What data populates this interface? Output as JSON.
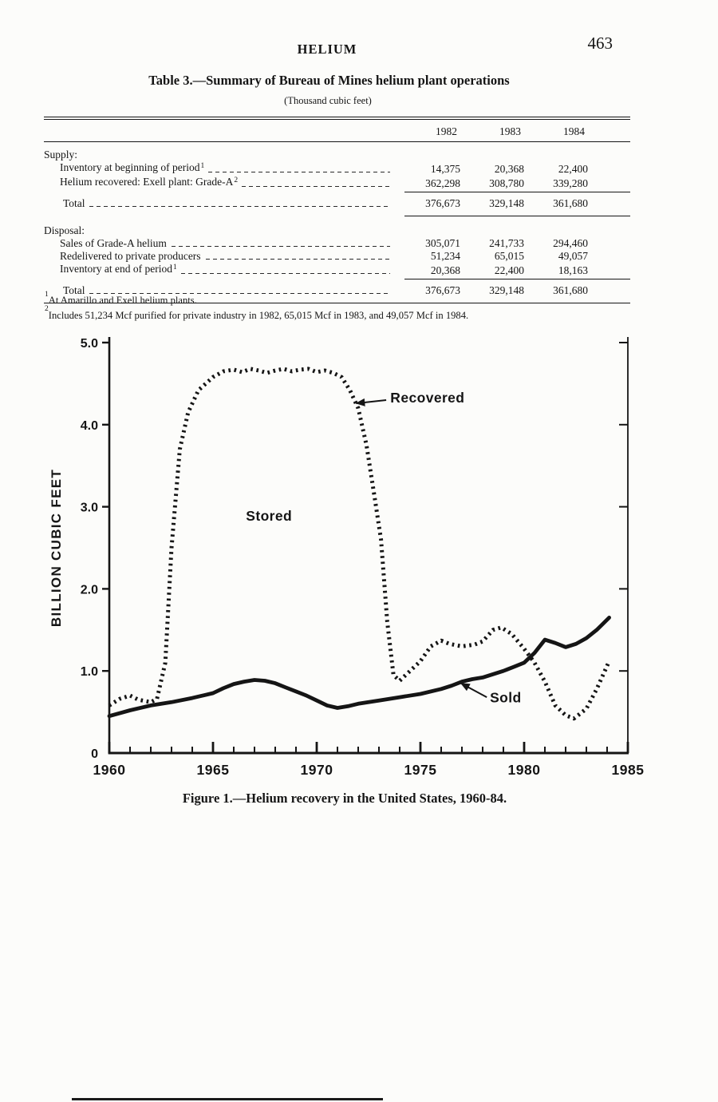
{
  "page": {
    "running_head": "HELIUM",
    "page_number": "463"
  },
  "table": {
    "title": "Table 3.—Summary of Bureau of Mines helium plant operations",
    "subtitle": "(Thousand cubic feet)",
    "years": [
      "1982",
      "1983",
      "1984"
    ],
    "sections": [
      {
        "heading": "Supply:",
        "rows": [
          {
            "label": "Inventory at beginning of period",
            "sup": "1",
            "values": [
              "14,375",
              "20,368",
              "22,400"
            ]
          },
          {
            "label": "Helium recovered: Exell plant: Grade-A",
            "sup": "2",
            "values": [
              "362,298",
              "308,780",
              "339,280"
            ]
          }
        ],
        "total": {
          "label": "Total",
          "values": [
            "376,673",
            "329,148",
            "361,680"
          ]
        }
      },
      {
        "heading": "Disposal:",
        "rows": [
          {
            "label": "Sales of Grade-A helium",
            "sup": "",
            "values": [
              "305,071",
              "241,733",
              "294,460"
            ]
          },
          {
            "label": "Redelivered to private producers",
            "sup": "",
            "values": [
              "51,234",
              "65,015",
              "49,057"
            ]
          },
          {
            "label": "Inventory at end of period",
            "sup": "1",
            "values": [
              "20,368",
              "22,400",
              "18,163"
            ]
          }
        ],
        "total": {
          "label": "Total",
          "values": [
            "376,673",
            "329,148",
            "361,680"
          ]
        }
      }
    ],
    "footnotes": [
      {
        "sup": "1",
        "text": "At Amarillo and Exell helium plants."
      },
      {
        "sup": "2",
        "text": "Includes 51,234 Mcf purified for private industry in 1982, 65,015 Mcf in 1983, and 49,057 Mcf in 1984."
      }
    ]
  },
  "figure": {
    "caption": "Figure 1.—Helium recovery in the United States, 1960-84."
  },
  "chart_data": {
    "type": "line",
    "title": "Figure 1.—Helium recovery in the United States, 1960-84.",
    "xlabel": "",
    "ylabel": "BILLION CUBIC FEET",
    "xlim": [
      1960,
      1985
    ],
    "ylim": [
      0,
      5
    ],
    "x_ticks": [
      1960,
      1965,
      1970,
      1975,
      1980,
      1985
    ],
    "y_ticks": [
      0,
      1,
      2,
      3,
      4,
      5
    ],
    "grid": false,
    "legend_position": "inline-annotations",
    "series": [
      {
        "name": "Recovered",
        "style": "dotted",
        "points": [
          [
            1960,
            0.58
          ],
          [
            1960.5,
            0.66
          ],
          [
            1961,
            0.7
          ],
          [
            1961.4,
            0.65
          ],
          [
            1962,
            0.62
          ],
          [
            1962.3,
            0.66
          ],
          [
            1962.7,
            1.1
          ],
          [
            1963.0,
            2.5
          ],
          [
            1963.4,
            3.7
          ],
          [
            1963.8,
            4.15
          ],
          [
            1964.3,
            4.42
          ],
          [
            1965,
            4.58
          ],
          [
            1965.5,
            4.65
          ],
          [
            1966,
            4.67
          ],
          [
            1966.4,
            4.64
          ],
          [
            1966.8,
            4.68
          ],
          [
            1967.2,
            4.66
          ],
          [
            1967.6,
            4.63
          ],
          [
            1968,
            4.66
          ],
          [
            1968.4,
            4.68
          ],
          [
            1968.8,
            4.65
          ],
          [
            1969.2,
            4.67
          ],
          [
            1969.6,
            4.68
          ],
          [
            1970,
            4.64
          ],
          [
            1970.4,
            4.66
          ],
          [
            1970.8,
            4.63
          ],
          [
            1971.2,
            4.58
          ],
          [
            1971.6,
            4.42
          ],
          [
            1972,
            4.2
          ],
          [
            1972.4,
            3.75
          ],
          [
            1972.8,
            3.1
          ],
          [
            1973.1,
            2.6
          ],
          [
            1973.4,
            1.6
          ],
          [
            1973.7,
            0.95
          ],
          [
            1974,
            0.88
          ],
          [
            1974.5,
            1.0
          ],
          [
            1975,
            1.12
          ],
          [
            1975.5,
            1.3
          ],
          [
            1976,
            1.37
          ],
          [
            1976.4,
            1.33
          ],
          [
            1977,
            1.3
          ],
          [
            1977.6,
            1.32
          ],
          [
            1978,
            1.36
          ],
          [
            1978.5,
            1.5
          ],
          [
            1978.9,
            1.53
          ],
          [
            1979.4,
            1.45
          ],
          [
            1980,
            1.27
          ],
          [
            1980.5,
            1.1
          ],
          [
            1981,
            0.87
          ],
          [
            1981.5,
            0.58
          ],
          [
            1982,
            0.46
          ],
          [
            1982.4,
            0.42
          ],
          [
            1983,
            0.54
          ],
          [
            1983.5,
            0.78
          ],
          [
            1984.1,
            1.12
          ]
        ]
      },
      {
        "name": "Sold",
        "style": "solid",
        "points": [
          [
            1960,
            0.45
          ],
          [
            1961,
            0.52
          ],
          [
            1962,
            0.58
          ],
          [
            1963,
            0.62
          ],
          [
            1964,
            0.67
          ],
          [
            1965,
            0.73
          ],
          [
            1965.5,
            0.79
          ],
          [
            1966,
            0.84
          ],
          [
            1966.5,
            0.87
          ],
          [
            1967,
            0.89
          ],
          [
            1967.5,
            0.88
          ],
          [
            1968,
            0.85
          ],
          [
            1968.5,
            0.8
          ],
          [
            1969,
            0.75
          ],
          [
            1969.5,
            0.7
          ],
          [
            1970,
            0.64
          ],
          [
            1970.5,
            0.58
          ],
          [
            1971,
            0.55
          ],
          [
            1971.5,
            0.57
          ],
          [
            1972,
            0.6
          ],
          [
            1973,
            0.64
          ],
          [
            1974,
            0.68
          ],
          [
            1975,
            0.72
          ],
          [
            1976,
            0.78
          ],
          [
            1976.5,
            0.82
          ],
          [
            1977,
            0.87
          ],
          [
            1977.5,
            0.9
          ],
          [
            1978,
            0.92
          ],
          [
            1978.5,
            0.96
          ],
          [
            1979,
            1.0
          ],
          [
            1979.5,
            1.05
          ],
          [
            1980,
            1.1
          ],
          [
            1980.5,
            1.22
          ],
          [
            1981,
            1.38
          ],
          [
            1981.5,
            1.34
          ],
          [
            1982,
            1.29
          ],
          [
            1982.5,
            1.33
          ],
          [
            1983,
            1.4
          ],
          [
            1983.5,
            1.5
          ],
          [
            1984.1,
            1.65
          ]
        ]
      }
    ],
    "annotations": [
      {
        "text": "Recovered",
        "x": 1973.55,
        "y": 4.27,
        "anchor": "start",
        "arrow": [
          1973.35,
          4.3,
          1971.9,
          4.26
        ]
      },
      {
        "text": "Stored",
        "x": 1967.7,
        "y": 2.83,
        "anchor": "middle"
      },
      {
        "text": "Sold",
        "x": 1978.35,
        "y": 0.62,
        "anchor": "start",
        "arrow": [
          1978.2,
          0.68,
          1976.95,
          0.85
        ]
      }
    ]
  }
}
